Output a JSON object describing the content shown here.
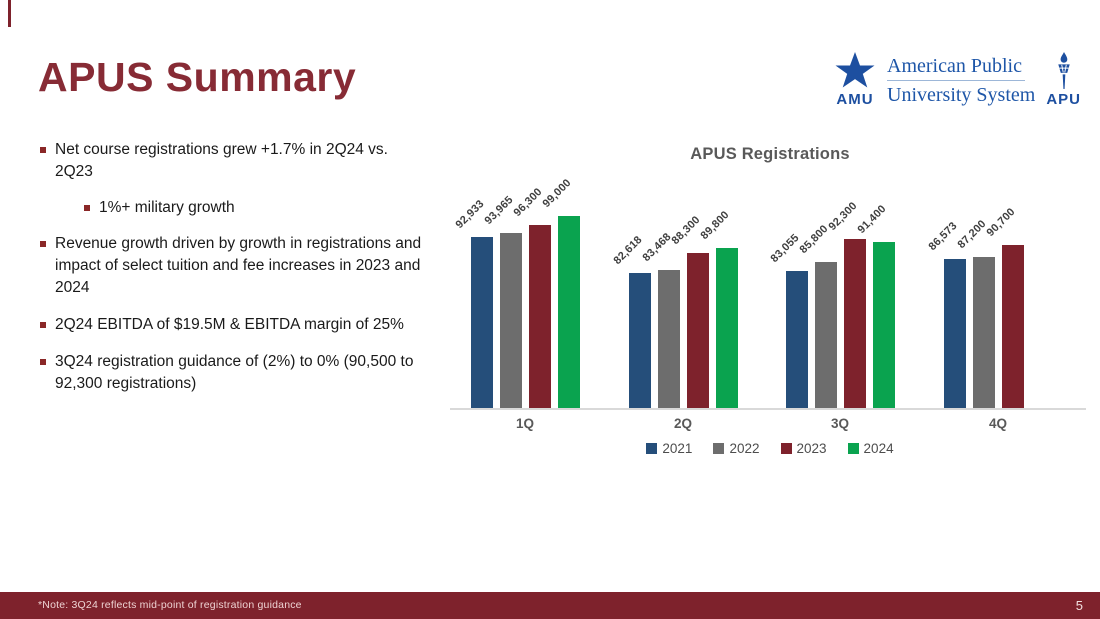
{
  "slide": {
    "title": "APUS Summary",
    "footer_note": "*Note: 3Q24 reflects mid-point of registration guidance",
    "page_number": "5"
  },
  "logo": {
    "amu_label": "AMU",
    "apu_label": "APU",
    "org_line1": "American Public",
    "org_line2": "University System",
    "brand_blue": "#1d4fa0"
  },
  "bullets": {
    "b1": "Net course registrations grew +1.7% in 2Q24 vs. 2Q23",
    "b1_sub": "1%+ military growth",
    "b2": "Revenue growth driven by growth in registrations and impact of select tuition and fee increases in 2023 and 2024",
    "b3": "2Q24 EBITDA of $19.5M & EBITDA margin of 25%",
    "b4": "3Q24 registration guidance of (2%) to 0% (90,500 to 92,300 registrations)"
  },
  "chart_data": {
    "type": "bar",
    "title": "APUS Registrations",
    "categories": [
      "1Q",
      "2Q",
      "3Q",
      "4Q"
    ],
    "series": [
      {
        "name": "2021",
        "color": "#254e7a",
        "values": [
          92933,
          82618,
          83055,
          86573
        ]
      },
      {
        "name": "2022",
        "color": "#6d6d6d",
        "values": [
          93965,
          83468,
          85800,
          87200
        ]
      },
      {
        "name": "2023",
        "color": "#7e222c",
        "values": [
          96300,
          88300,
          92300,
          90700
        ]
      },
      {
        "name": "2024",
        "color": "#0aa34f",
        "values": [
          99000,
          89800,
          91400,
          null
        ]
      }
    ],
    "data_labels": true,
    "label_rotation_deg": -45,
    "grid": false,
    "ylim": [
      43500,
      100000
    ],
    "legend_position": "bottom",
    "accent_colors": {
      "title_maroon": "#872b35",
      "footer_maroon": "#7e222c",
      "axis_line": "#d9d9d9",
      "chart_text_gray": "#595959"
    }
  }
}
